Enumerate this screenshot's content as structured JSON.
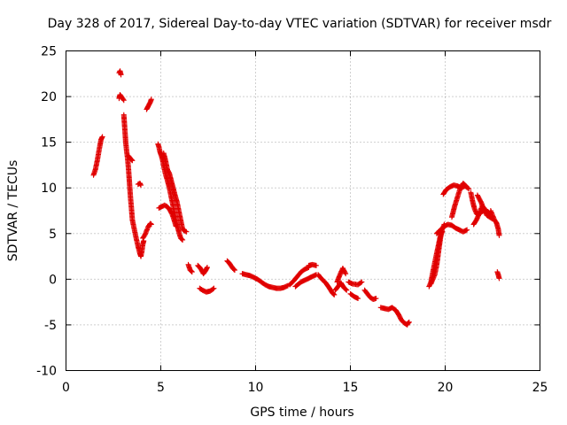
{
  "chart_data": {
    "type": "scatter",
    "title": "Day 328 of 2017, Sidereal Day-to-day VTEC variation (SDTVAR) for receiver msdr",
    "xlabel": "GPS time / hours",
    "ylabel": "SDTVAR / TECUs",
    "xlim": [
      0,
      25
    ],
    "ylim": [
      -10,
      25
    ],
    "xticks": [
      "0",
      "5",
      "10",
      "15",
      "20",
      "25"
    ],
    "yticks": [
      "25",
      "20",
      "15",
      "10",
      "5",
      "0",
      "-5",
      "-10"
    ],
    "grid": true,
    "marker": "+",
    "color": "#e00000",
    "series": [
      {
        "name": "msdr",
        "segments": [
          [
            [
              1.45,
              11.4
            ],
            [
              1.55,
              12
            ],
            [
              1.65,
              13
            ],
            [
              1.75,
              14.2
            ],
            [
              1.85,
              15.3
            ],
            [
              1.92,
              15.6
            ]
          ],
          [
            [
              2.8,
              22.6
            ],
            [
              2.85,
              22.8
            ],
            [
              2.9,
              22.4
            ]
          ],
          [
            [
              2.8,
              19.8
            ],
            [
              2.85,
              20.2
            ],
            [
              2.95,
              19.9
            ],
            [
              3.05,
              19.6
            ]
          ],
          [
            [
              3.05,
              18
            ],
            [
              3.1,
              16.5
            ],
            [
              3.15,
              15
            ],
            [
              3.2,
              14
            ],
            [
              3.25,
              13.2
            ],
            [
              3.3,
              12
            ],
            [
              3.35,
              10.5
            ],
            [
              3.4,
              9
            ],
            [
              3.45,
              7.8
            ],
            [
              3.5,
              6.5
            ],
            [
              3.6,
              5.5
            ],
            [
              3.7,
              4.5
            ],
            [
              3.8,
              3.6
            ],
            [
              3.9,
              2.8
            ],
            [
              3.95,
              2.5
            ],
            [
              4.0,
              3
            ],
            [
              4.05,
              3.8
            ],
            [
              4.1,
              4.2
            ]
          ],
          [
            [
              3.3,
              13.5
            ],
            [
              3.4,
              13.2
            ],
            [
              3.5,
              13
            ]
          ],
          [
            [
              3.8,
              10.4
            ],
            [
              3.9,
              10.5
            ],
            [
              3.95,
              10.3
            ]
          ],
          [
            [
              4.05,
              4.5
            ],
            [
              4.15,
              4.8
            ],
            [
              4.25,
              5.3
            ],
            [
              4.35,
              5.8
            ],
            [
              4.45,
              6.1
            ],
            [
              4.5,
              6
            ]
          ],
          [
            [
              4.25,
              18.6
            ],
            [
              4.35,
              19
            ],
            [
              4.45,
              19.4
            ],
            [
              4.5,
              19.7
            ]
          ],
          [
            [
              4.85,
              14.8
            ],
            [
              4.9,
              14.5
            ],
            [
              4.95,
              14
            ],
            [
              5.0,
              13.7
            ],
            [
              5.05,
              13.4
            ],
            [
              5.1,
              13
            ],
            [
              5.15,
              12.4
            ],
            [
              5.25,
              11.5
            ],
            [
              5.35,
              10.8
            ],
            [
              5.45,
              10
            ],
            [
              5.55,
              9
            ],
            [
              5.65,
              8
            ],
            [
              5.75,
              7
            ],
            [
              5.85,
              6
            ],
            [
              5.95,
              5.2
            ],
            [
              6.05,
              4.5
            ],
            [
              6.15,
              4.3
            ]
          ],
          [
            [
              4.9,
              7.8
            ],
            [
              5.0,
              7.9
            ],
            [
              5.1,
              8
            ],
            [
              5.2,
              8.1
            ],
            [
              5.3,
              8
            ],
            [
              5.4,
              7.8
            ],
            [
              5.5,
              7.5
            ],
            [
              5.6,
              7.1
            ],
            [
              5.7,
              6.5
            ],
            [
              5.8,
              5.8
            ]
          ],
          [
            [
              5.15,
              13.8
            ],
            [
              5.25,
              13
            ],
            [
              5.35,
              12
            ],
            [
              5.45,
              11.6
            ],
            [
              5.55,
              10.8
            ],
            [
              5.65,
              10
            ],
            [
              5.75,
              9.2
            ],
            [
              5.85,
              8.5
            ],
            [
              5.95,
              7.5
            ],
            [
              6.05,
              6.5
            ],
            [
              6.15,
              5.5
            ],
            [
              6.25,
              5.3
            ],
            [
              6.35,
              5.2
            ]
          ],
          [
            [
              6.45,
              1.6
            ],
            [
              6.55,
              1
            ],
            [
              6.65,
              0.8
            ]
          ],
          [
            [
              6.95,
              1.5
            ],
            [
              7.05,
              1.3
            ],
            [
              7.15,
              1
            ],
            [
              7.25,
              0.6
            ],
            [
              7.35,
              0.9
            ],
            [
              7.45,
              1.3
            ]
          ],
          [
            [
              7.05,
              -1
            ],
            [
              7.2,
              -1.2
            ],
            [
              7.4,
              -1.4
            ],
            [
              7.6,
              -1.3
            ],
            [
              7.8,
              -1
            ]
          ],
          [
            [
              8.5,
              2
            ],
            [
              8.6,
              1.8
            ],
            [
              8.7,
              1.5
            ],
            [
              8.8,
              1.2
            ],
            [
              8.9,
              1
            ]
          ],
          [
            [
              9.3,
              0.6
            ],
            [
              9.5,
              0.5
            ],
            [
              9.7,
              0.4
            ],
            [
              9.9,
              0.2
            ],
            [
              10.1,
              0
            ],
            [
              10.3,
              -0.3
            ],
            [
              10.5,
              -0.6
            ],
            [
              10.7,
              -0.8
            ],
            [
              10.9,
              -0.9
            ],
            [
              11.1,
              -1
            ],
            [
              11.3,
              -1
            ],
            [
              11.5,
              -0.9
            ],
            [
              11.7,
              -0.7
            ]
          ],
          [
            [
              11.8,
              -0.6
            ],
            [
              12.0,
              -0.2
            ],
            [
              12.2,
              0.3
            ],
            [
              12.4,
              0.8
            ],
            [
              12.6,
              1.1
            ],
            [
              12.8,
              1.3
            ]
          ],
          [
            [
              12.1,
              -0.8
            ],
            [
              12.4,
              -0.3
            ],
            [
              12.7,
              0
            ],
            [
              13.0,
              0.3
            ],
            [
              13.2,
              0.5
            ]
          ],
          [
            [
              12.8,
              1.5
            ],
            [
              13.0,
              1.6
            ],
            [
              13.2,
              1.5
            ]
          ],
          [
            [
              13.3,
              0.5
            ],
            [
              13.5,
              0
            ],
            [
              13.7,
              -0.4
            ],
            [
              13.9,
              -1
            ],
            [
              14.05,
              -1.5
            ],
            [
              14.15,
              -1.7
            ]
          ],
          [
            [
              14.2,
              -1.2
            ],
            [
              14.35,
              -0.8
            ],
            [
              14.5,
              -0.4
            ],
            [
              14.65,
              -0.9
            ],
            [
              14.8,
              -1.2
            ]
          ],
          [
            [
              14.3,
              -0.3
            ],
            [
              14.45,
              0.5
            ],
            [
              14.6,
              1.2
            ],
            [
              14.75,
              0.6
            ]
          ],
          [
            [
              14.9,
              -0.3
            ],
            [
              15.1,
              -0.5
            ],
            [
              15.4,
              -0.6
            ],
            [
              15.6,
              -0.3
            ]
          ],
          [
            [
              15.0,
              -1.6
            ],
            [
              15.2,
              -1.9
            ],
            [
              15.4,
              -2.1
            ]
          ],
          [
            [
              15.75,
              -1.2
            ],
            [
              15.9,
              -1.6
            ],
            [
              16.05,
              -2
            ],
            [
              16.2,
              -2.2
            ],
            [
              16.35,
              -2.1
            ]
          ],
          [
            [
              16.6,
              -3.1
            ],
            [
              16.8,
              -3.2
            ],
            [
              17.0,
              -3.3
            ],
            [
              17.2,
              -3.1
            ],
            [
              17.4,
              -3.4
            ],
            [
              17.55,
              -3.9
            ],
            [
              17.7,
              -4.5
            ],
            [
              17.85,
              -4.8
            ],
            [
              18.0,
              -5
            ]
          ],
          [
            [
              18.0,
              -4.9
            ],
            [
              18.1,
              -4.7
            ]
          ],
          [
            [
              19.15,
              -0.8
            ],
            [
              19.25,
              -0.3
            ],
            [
              19.35,
              0.8
            ],
            [
              19.45,
              1.8
            ],
            [
              19.55,
              2.8
            ],
            [
              19.65,
              3.8
            ],
            [
              19.75,
              4.8
            ],
            [
              19.85,
              5.2
            ]
          ],
          [
            [
              19.25,
              -0.5
            ],
            [
              19.35,
              0
            ],
            [
              19.45,
              0.5
            ],
            [
              19.55,
              1.5
            ],
            [
              19.65,
              3
            ],
            [
              19.75,
              4.5
            ],
            [
              19.85,
              5.5
            ],
            [
              19.95,
              6
            ]
          ],
          [
            [
              19.55,
              5
            ],
            [
              19.75,
              5.4
            ],
            [
              19.95,
              5.8
            ],
            [
              20.15,
              6
            ],
            [
              20.35,
              5.9
            ],
            [
              20.55,
              5.6
            ],
            [
              20.75,
              5.4
            ],
            [
              20.95,
              5.2
            ],
            [
              21.15,
              5.4
            ]
          ],
          [
            [
              19.9,
              9.3
            ],
            [
              20.05,
              9.8
            ],
            [
              20.25,
              10.1
            ],
            [
              20.45,
              10.3
            ],
            [
              20.65,
              10.2
            ],
            [
              20.85,
              10
            ],
            [
              21.05,
              10.2
            ],
            [
              21.25,
              9.9
            ]
          ],
          [
            [
              20.35,
              6.8
            ],
            [
              20.5,
              8
            ],
            [
              20.65,
              9
            ],
            [
              20.8,
              10
            ],
            [
              20.95,
              10.5
            ],
            [
              21.1,
              10.2
            ]
          ],
          [
            [
              21.35,
              9.5
            ],
            [
              21.45,
              8.5
            ],
            [
              21.55,
              7.7
            ],
            [
              21.65,
              7.2
            ],
            [
              21.75,
              7
            ],
            [
              21.85,
              7.5
            ],
            [
              21.95,
              8
            ],
            [
              22.05,
              7.8
            ]
          ],
          [
            [
              21.5,
              6
            ],
            [
              21.65,
              6.5
            ],
            [
              21.8,
              7.2
            ],
            [
              21.95,
              7.4
            ],
            [
              22.1,
              7.6
            ],
            [
              22.25,
              7.4
            ],
            [
              22.4,
              7.1
            ]
          ],
          [
            [
              21.7,
              9.2
            ],
            [
              21.9,
              8.4
            ],
            [
              22.05,
              7.6
            ],
            [
              22.2,
              7
            ],
            [
              22.35,
              6.8
            ],
            [
              22.5,
              6.6
            ]
          ],
          [
            [
              22.4,
              7.5
            ],
            [
              22.5,
              7
            ],
            [
              22.6,
              6.5
            ],
            [
              22.7,
              6.2
            ],
            [
              22.8,
              5.5
            ],
            [
              22.85,
              4.8
            ]
          ],
          [
            [
              22.75,
              0.8
            ],
            [
              22.8,
              0.5
            ],
            [
              22.85,
              0.1
            ]
          ]
        ]
      }
    ]
  }
}
